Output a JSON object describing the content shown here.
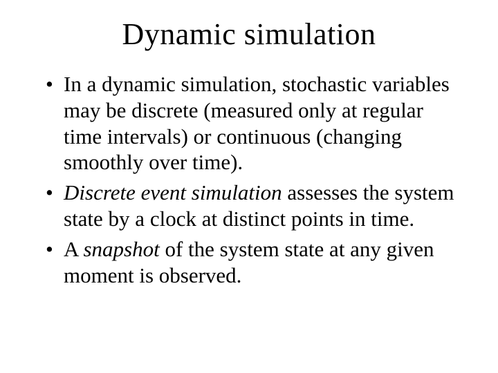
{
  "title": "Dynamic simulation",
  "bullets": [
    {
      "pre": "In a dynamic simulation, stochastic variables may be discrete (measured only at regular time intervals) or continuous (changing smoothly over time).",
      "italic": "",
      "post": ""
    },
    {
      "pre": "",
      "italic": "Discrete event simulation",
      "post": " assesses the system state by a clock at distinct points in time."
    },
    {
      "pre": "A ",
      "italic": "snapshot",
      "post": " of the system state at any given moment is observed."
    }
  ],
  "colors": {
    "background": "#ffffff",
    "text": "#000000"
  },
  "typography": {
    "title_fontsize": 44,
    "body_fontsize": 31,
    "font_family": "Times New Roman"
  }
}
